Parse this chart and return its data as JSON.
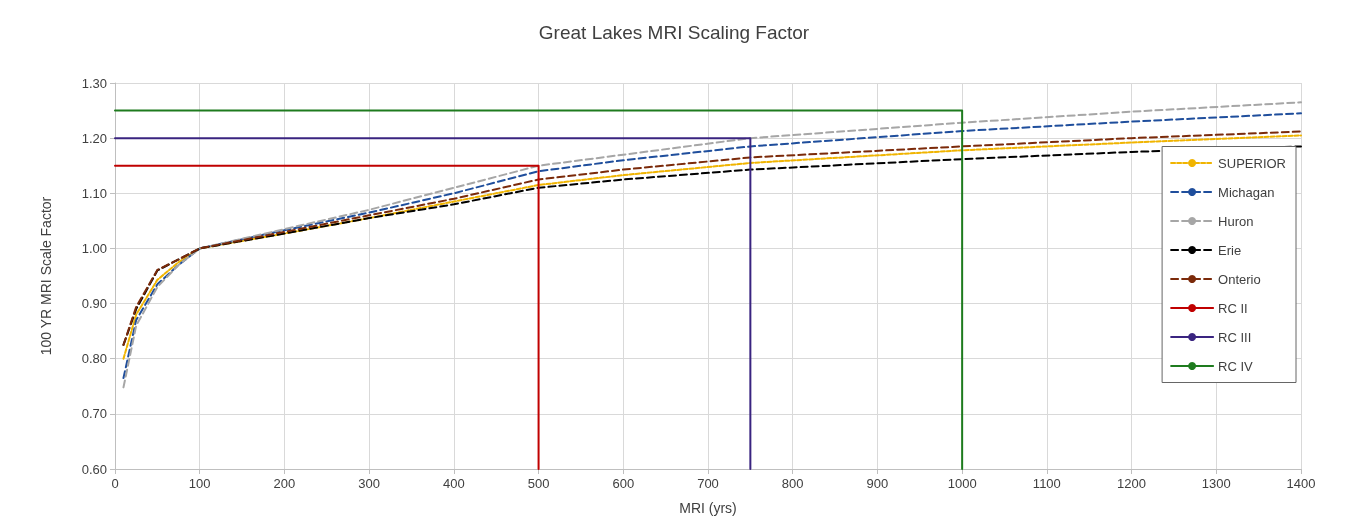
{
  "chart_data": {
    "type": "line",
    "title": "Great Lakes MRI Scaling Factor",
    "xlabel": "MRI (yrs)",
    "ylabel": "100 YR MRI Scale Factor",
    "x": [
      10,
      25,
      50,
      75,
      100,
      200,
      300,
      400,
      500,
      600,
      750,
      1000,
      1200,
      1400
    ],
    "series": [
      {
        "name": "SUPERIOR",
        "color": "#f0b400",
        "line_style": "dotted",
        "values": [
          0.8,
          0.88,
          0.943,
          0.975,
          1.0,
          1.027,
          1.055,
          1.085,
          1.115,
          1.133,
          1.155,
          1.178,
          1.192,
          1.205
        ]
      },
      {
        "name": "Michagan",
        "color": "#1f4e9c",
        "line_style": "dashed",
        "values": [
          0.765,
          0.87,
          0.935,
          0.97,
          1.0,
          1.033,
          1.065,
          1.1,
          1.14,
          1.16,
          1.185,
          1.213,
          1.23,
          1.245
        ]
      },
      {
        "name": "Huron",
        "color": "#a6a6a6",
        "line_style": "dashed",
        "values": [
          0.748,
          0.86,
          0.93,
          0.97,
          1.0,
          1.035,
          1.07,
          1.11,
          1.15,
          1.17,
          1.2,
          1.228,
          1.248,
          1.265
        ]
      },
      {
        "name": "Erie",
        "color": "#000000",
        "line_style": "dashed",
        "values": [
          0.825,
          0.89,
          0.96,
          0.98,
          1.0,
          1.027,
          1.055,
          1.08,
          1.11,
          1.125,
          1.143,
          1.162,
          1.175,
          1.185
        ]
      },
      {
        "name": "Onterio",
        "color": "#7b2a0a",
        "line_style": "dashed",
        "values": [
          0.825,
          0.894,
          0.961,
          0.98,
          1.0,
          1.03,
          1.06,
          1.09,
          1.125,
          1.143,
          1.165,
          1.185,
          1.2,
          1.212
        ]
      },
      {
        "name": "RC II",
        "color": "#c00000",
        "line_style": "solid",
        "x": [
          0,
          500,
          500
        ],
        "values": [
          1.15,
          1.15,
          0.6
        ]
      },
      {
        "name": "RC III",
        "color": "#3a2480",
        "line_style": "solid",
        "x": [
          0,
          750,
          750
        ],
        "values": [
          1.2,
          1.2,
          0.6
        ]
      },
      {
        "name": "RC IV",
        "color": "#1e7b1e",
        "line_style": "solid",
        "x": [
          0,
          1000,
          1000
        ],
        "values": [
          1.25,
          1.25,
          0.6
        ]
      }
    ],
    "xlim": [
      0,
      1400
    ],
    "xticks": [
      0,
      100,
      200,
      300,
      400,
      500,
      600,
      700,
      800,
      900,
      1000,
      1100,
      1200,
      1300,
      1400
    ],
    "ylim": [
      0.6,
      1.3
    ],
    "yticks": [
      {
        "value": 0.6,
        "label": "0.60"
      },
      {
        "value": 0.7,
        "label": "0.70"
      },
      {
        "value": 0.8,
        "label": "0.80"
      },
      {
        "value": 0.9,
        "label": "0.90"
      },
      {
        "value": 1.0,
        "label": "1.00"
      },
      {
        "value": 1.1,
        "label": "1.10"
      },
      {
        "value": 1.2,
        "label": "1.20"
      },
      {
        "value": 1.3,
        "label": "1.30"
      }
    ],
    "grid": true,
    "legend": "right",
    "marker": "none"
  }
}
